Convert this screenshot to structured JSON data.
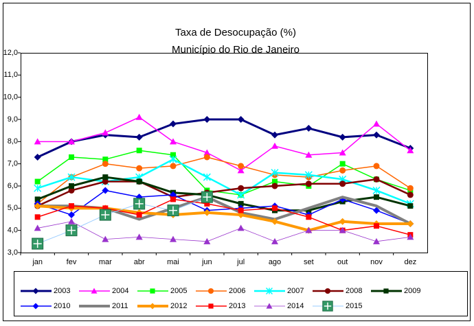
{
  "chart_data": {
    "type": "line",
    "title": "Taxa de Desocupação (%)",
    "subtitle": "Município do Rio de Janeiro",
    "categories": [
      "jan",
      "fev",
      "mar",
      "abr",
      "mai",
      "jun",
      "jul",
      "ago",
      "set",
      "out",
      "nov",
      "dez"
    ],
    "ylim": [
      3,
      12
    ],
    "yticks": [
      {
        "value": 3,
        "label": "3,0"
      },
      {
        "value": 4,
        "label": "4,0"
      },
      {
        "value": 5,
        "label": "5,0"
      },
      {
        "value": 6,
        "label": "6,0"
      },
      {
        "value": 7,
        "label": "7,0"
      },
      {
        "value": 8,
        "label": "8,0"
      },
      {
        "value": 9,
        "label": "9,0"
      },
      {
        "value": 10,
        "label": "10,0"
      },
      {
        "value": 11,
        "label": "11,0"
      },
      {
        "value": 12,
        "label": "12,0"
      }
    ],
    "grid": false,
    "legend": "bottom",
    "series": [
      {
        "name": "2003",
        "color": "#000080",
        "marker": "diamond",
        "width": 3,
        "values": [
          7.3,
          8.0,
          8.3,
          8.2,
          8.8,
          9.0,
          9.0,
          8.3,
          8.6,
          8.2,
          8.3,
          7.7
        ]
      },
      {
        "name": "2004",
        "color": "#ff00ff",
        "marker": "triangle",
        "width": 1.5,
        "values": [
          8.0,
          8.0,
          8.4,
          9.1,
          8.0,
          7.5,
          6.7,
          7.8,
          7.4,
          7.5,
          8.8,
          7.6
        ]
      },
      {
        "name": "2005",
        "color": "#00ff00",
        "marker": "square",
        "width": 1.5,
        "values": [
          6.2,
          7.3,
          7.2,
          7.6,
          7.4,
          5.8,
          5.6,
          6.2,
          6.0,
          7.0,
          6.3,
          5.8
        ]
      },
      {
        "name": "2006",
        "color": "#ff6600",
        "marker": "circle",
        "width": 1.5,
        "values": [
          5.2,
          6.4,
          7.0,
          6.8,
          6.9,
          7.3,
          6.9,
          6.5,
          6.4,
          6.7,
          6.9,
          5.9
        ]
      },
      {
        "name": "2007",
        "color": "#00ffff",
        "marker": "star",
        "width": 2.5,
        "values": [
          5.9,
          6.4,
          6.2,
          6.4,
          7.2,
          6.4,
          5.6,
          6.6,
          6.5,
          6.3,
          5.8,
          5.2
        ]
      },
      {
        "name": "2008",
        "color": "#800000",
        "marker": "circle",
        "width": 2.5,
        "values": [
          5.1,
          5.8,
          6.2,
          6.2,
          5.5,
          5.7,
          5.9,
          6.0,
          6.1,
          6.1,
          6.3,
          5.6
        ]
      },
      {
        "name": "2009",
        "color": "#003300",
        "marker": "square",
        "width": 3,
        "values": [
          5.4,
          6.0,
          6.4,
          6.2,
          5.7,
          5.6,
          5.2,
          4.9,
          4.9,
          5.3,
          5.5,
          5.1
        ]
      },
      {
        "name": "2010",
        "color": "#0000ff",
        "marker": "diamond",
        "width": 1.5,
        "values": [
          5.2,
          4.7,
          5.8,
          5.5,
          5.6,
          4.9,
          5.0,
          5.1,
          4.7,
          5.4,
          4.9,
          4.3
        ]
      },
      {
        "name": "2011",
        "color": "#808080",
        "marker": "none",
        "width": 4,
        "values": [
          5.1,
          5.1,
          5.0,
          4.5,
          5.0,
          5.5,
          4.8,
          4.5,
          5.0,
          5.5,
          5.1,
          4.3
        ]
      },
      {
        "name": "2012",
        "color": "#ff9900",
        "marker": "diamond",
        "width": 4,
        "values": [
          5.1,
          5.0,
          5.0,
          4.8,
          4.7,
          4.8,
          4.7,
          4.4,
          4.0,
          4.4,
          4.3,
          4.3
        ]
      },
      {
        "name": "2013",
        "color": "#ff0000",
        "marker": "square",
        "width": 1.5,
        "values": [
          4.6,
          5.1,
          5.0,
          4.7,
          5.4,
          5.2,
          4.9,
          5.0,
          4.6,
          4.0,
          4.2,
          3.8
        ]
      },
      {
        "name": "2014",
        "color": "#9933cc",
        "marker": "triangle",
        "width": 0.8,
        "values": [
          4.1,
          4.4,
          3.6,
          3.7,
          3.6,
          3.5,
          4.1,
          3.5,
          4.0,
          4.0,
          3.5,
          3.7
        ]
      },
      {
        "name": "2015",
        "color": "#99ccff",
        "marker": "plus-square",
        "width": 1,
        "values": [
          3.4,
          4.0,
          4.7,
          5.2,
          4.9,
          5.5,
          null,
          null,
          null,
          null,
          null,
          null
        ]
      }
    ]
  }
}
